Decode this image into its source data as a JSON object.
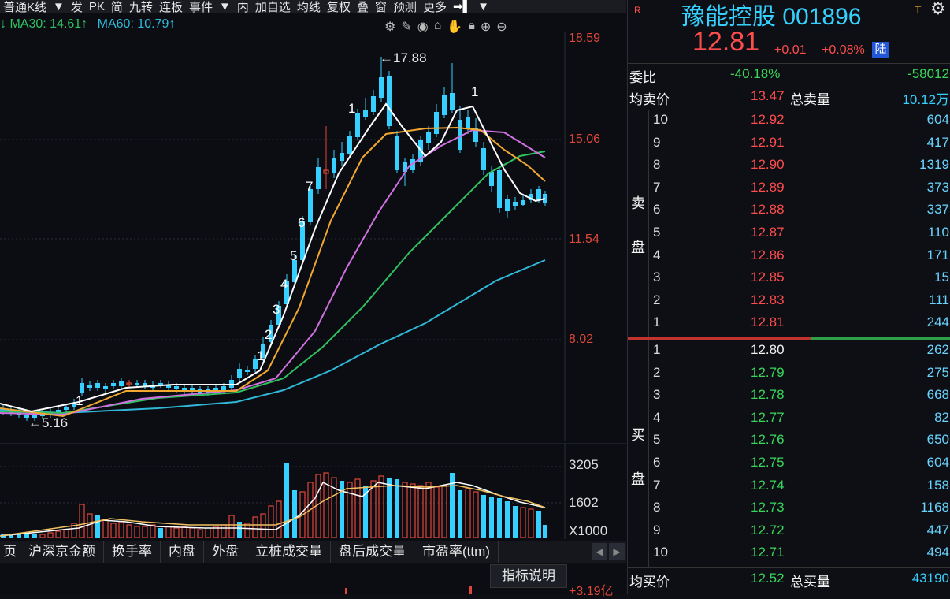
{
  "toolbar": {
    "items": [
      "普通K线",
      "▼",
      "发",
      "PK",
      "简",
      "九转",
      "连板",
      "事件",
      "▼",
      "内",
      "加自选",
      "均线",
      "复权",
      "叠",
      "窗",
      "预测",
      "更多"
    ]
  },
  "ma": {
    "ma30_label": "MA30: 14.61↑",
    "ma60_label": "MA60: 10.79↑"
  },
  "price_axis": [
    "18.59",
    "15.06",
    "11.54",
    "8.02"
  ],
  "annotations": {
    "high": "←17.88",
    "low": "←5.16"
  },
  "volume_axis": [
    "3205",
    "1602",
    "X1000"
  ],
  "bottom_tabs": [
    "沪深京金额",
    "换手率",
    "内盘",
    "外盘",
    "立桩成交量",
    "盘后成交量",
    "市盈率(ttm)"
  ],
  "bottom_extra": {
    "indicator_btn": "指标说明",
    "amount": "+3.19亿"
  },
  "quote": {
    "r_badge": "R",
    "t_badge": "T",
    "name": "豫能控股 001896",
    "price": "12.81",
    "change": "+0.01",
    "change_pct": "+0.08%",
    "market_badge": "陆",
    "weibi_label": "委比",
    "weibi_value": "-40.18%",
    "weibi_diff": "-58012",
    "avg_sell_label": "均卖价",
    "avg_sell_price": "13.47",
    "total_sell_label": "总卖量",
    "total_sell": "10.12万",
    "sell_side_label": [
      "卖",
      "盘"
    ],
    "buy_side_label": [
      "买",
      "盘"
    ],
    "asks": [
      {
        "level": "10",
        "price": "12.92",
        "vol": "604"
      },
      {
        "level": "9",
        "price": "12.91",
        "vol": "417"
      },
      {
        "level": "8",
        "price": "12.90",
        "vol": "1319"
      },
      {
        "level": "7",
        "price": "12.89",
        "vol": "373"
      },
      {
        "level": "6",
        "price": "12.88",
        "vol": "337"
      },
      {
        "level": "5",
        "price": "12.87",
        "vol": "110"
      },
      {
        "level": "4",
        "price": "12.86",
        "vol": "171"
      },
      {
        "level": "3",
        "price": "12.85",
        "vol": "15"
      },
      {
        "level": "2",
        "price": "12.83",
        "vol": "111"
      },
      {
        "level": "1",
        "price": "12.81",
        "vol": "244"
      }
    ],
    "bids": [
      {
        "level": "1",
        "price": "12.80",
        "vol": "262"
      },
      {
        "level": "2",
        "price": "12.79",
        "vol": "275"
      },
      {
        "level": "3",
        "price": "12.78",
        "vol": "668"
      },
      {
        "level": "4",
        "price": "12.77",
        "vol": "82"
      },
      {
        "level": "5",
        "price": "12.76",
        "vol": "650"
      },
      {
        "level": "6",
        "price": "12.75",
        "vol": "604"
      },
      {
        "level": "7",
        "price": "12.74",
        "vol": "158"
      },
      {
        "level": "8",
        "price": "12.73",
        "vol": "1168"
      },
      {
        "level": "9",
        "price": "12.72",
        "vol": "447"
      },
      {
        "level": "10",
        "price": "12.71",
        "vol": "494"
      }
    ],
    "avg_buy_label": "均买价",
    "avg_buy_price": "12.52",
    "total_buy_label": "总买量",
    "total_buy": "43190"
  },
  "colors": {
    "up": "#e0463a",
    "down": "#35d0ff",
    "ma5": "#ffffff",
    "ma10": "#f0a830",
    "ma20": "#d070e0",
    "ma30": "#30c060",
    "ma60": "#30b8d8"
  }
}
